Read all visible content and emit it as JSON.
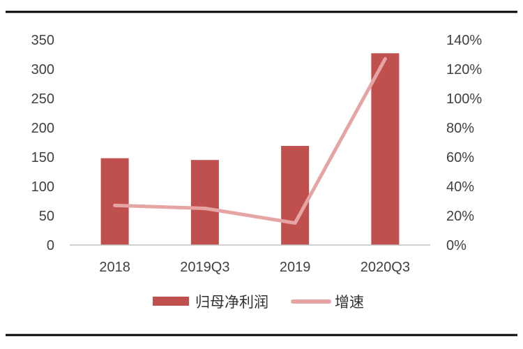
{
  "chart_data": {
    "type": "bar",
    "title": "",
    "xlabel": "",
    "ylabel": "",
    "categories": [
      "2018",
      "2019Q3",
      "2019",
      "2020Q3"
    ],
    "ylim": [
      0,
      350
    ],
    "yticks": [
      "0",
      "50",
      "100",
      "150",
      "200",
      "250",
      "300",
      "350"
    ],
    "y2lim": [
      0,
      140
    ],
    "y2ticks": [
      "0%",
      "20%",
      "40%",
      "60%",
      "80%",
      "100%",
      "120%",
      "140%"
    ],
    "series": [
      {
        "name": "归母净利润",
        "type": "bar",
        "axis": "left",
        "color": "#c0504d",
        "values": [
          148,
          145,
          169,
          327
        ]
      },
      {
        "name": "增速",
        "type": "line",
        "axis": "right",
        "color": "#e6a5a5",
        "values": [
          27,
          25,
          15,
          127
        ]
      }
    ],
    "legend": "bottom-center",
    "grid": false
  }
}
